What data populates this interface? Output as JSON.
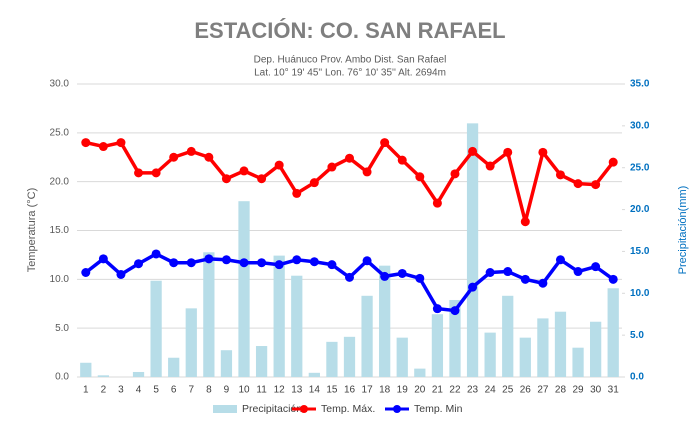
{
  "chart_data": {
    "type": "bar_line",
    "title": "ESTACIÓN: CO. SAN RAFAEL",
    "subtitle": [
      "Dep. Huánuco Prov. Ambo Dist. San Rafael",
      "Lat. 10° 19' 45'' Lon. 76° 10' 35'' Alt. 2694m"
    ],
    "y_label": "Temperatura (°C)",
    "y2_label": "Precipitación(mm)",
    "categories": [
      "1",
      "2",
      "3",
      "4",
      "5",
      "6",
      "7",
      "8",
      "9",
      "10",
      "11",
      "12",
      "13",
      "14",
      "15",
      "16",
      "17",
      "18",
      "19",
      "20",
      "21",
      "22",
      "23",
      "24",
      "25",
      "26",
      "27",
      "28",
      "29",
      "30",
      "31"
    ],
    "ylim": [
      0,
      30
    ],
    "yticks": [
      {
        "value": 0,
        "label": "0.0"
      },
      {
        "value": 5,
        "label": "5.0"
      },
      {
        "value": 10,
        "label": "10.0"
      },
      {
        "value": 15,
        "label": "15.0"
      },
      {
        "value": 20,
        "label": "20.0"
      },
      {
        "value": 25,
        "label": "25.0"
      },
      {
        "value": 30,
        "label": "30.0"
      }
    ],
    "y2lim": [
      0,
      35
    ],
    "y2ticks": [
      {
        "value": 0,
        "label": "0.0"
      },
      {
        "value": 5,
        "label": "5.0"
      },
      {
        "value": 10,
        "label": "10.0"
      },
      {
        "value": 15,
        "label": "15.0"
      },
      {
        "value": 20,
        "label": "20.0"
      },
      {
        "value": 25,
        "label": "25.0"
      },
      {
        "value": 30,
        "label": "30.0"
      },
      {
        "value": 35,
        "label": "35.0"
      }
    ],
    "series": [
      {
        "name": "Precipitación",
        "type": "bar",
        "axis": "y2",
        "color": "#b7dde8",
        "values": [
          1.7,
          0.2,
          0,
          0.6,
          11.5,
          2.3,
          8.2,
          14.9,
          3.2,
          21.0,
          3.7,
          14.5,
          12.1,
          0.5,
          4.2,
          4.8,
          9.7,
          13.3,
          4.7,
          1.0,
          7.5,
          9.2,
          30.3,
          5.3,
          9.7,
          4.7,
          7.0,
          7.8,
          3.5,
          6.6,
          10.6
        ]
      },
      {
        "name": "Temp. Máx.",
        "type": "line",
        "color": "#ff0000",
        "values": [
          24.0,
          23.6,
          24.0,
          20.9,
          20.9,
          22.5,
          23.1,
          22.5,
          20.3,
          21.1,
          20.3,
          21.7,
          18.8,
          19.9,
          21.5,
          22.4,
          21.0,
          24.0,
          22.2,
          20.5,
          17.8,
          20.8,
          23.1,
          21.6,
          23.0,
          15.9,
          23.0,
          20.7,
          19.8,
          19.7,
          22.0
        ]
      },
      {
        "name": "Temp. Min",
        "type": "line",
        "color": "#0000ff",
        "values": [
          10.7,
          12.1,
          10.5,
          11.6,
          12.6,
          11.7,
          11.7,
          12.1,
          12.0,
          11.7,
          11.7,
          11.5,
          12.0,
          11.8,
          11.5,
          10.2,
          11.9,
          10.3,
          10.6,
          10.1,
          7.0,
          6.8,
          9.2,
          10.7,
          10.8,
          10.0,
          9.6,
          12.0,
          10.8,
          11.3,
          10.0
        ]
      }
    ],
    "y2_tick_color": "#0070c0",
    "legend": "bottom"
  }
}
